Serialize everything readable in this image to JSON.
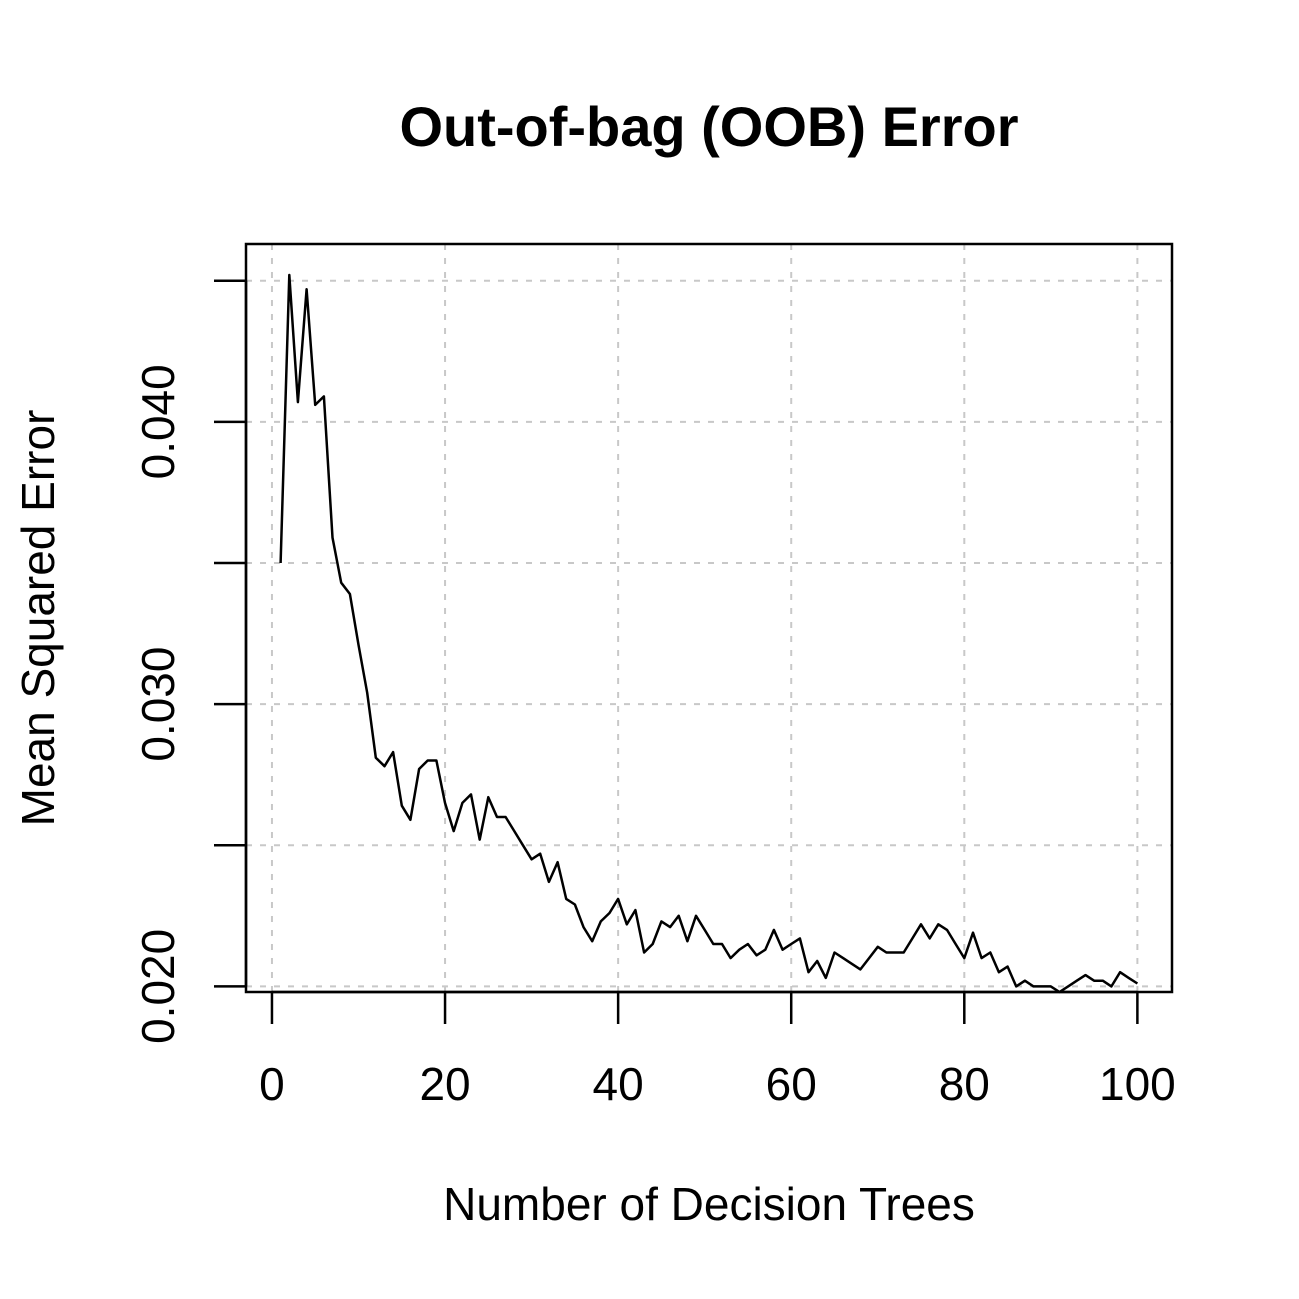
{
  "chart_data": {
    "type": "line",
    "title": "Out-of-bag (OOB) Error",
    "xlabel": "Number of Decision Trees",
    "ylabel": "Mean Squared Error",
    "xlim": [
      -3,
      104
    ],
    "ylim": [
      0.0198,
      0.0463
    ],
    "x_ticks": [
      0,
      20,
      40,
      60,
      80,
      100
    ],
    "x_tick_labels": [
      "0",
      "20",
      "40",
      "60",
      "80",
      "100"
    ],
    "y_ticks": [
      0.02,
      0.025,
      0.03,
      0.035,
      0.04,
      0.045
    ],
    "y_tick_labels": [
      "0.020",
      "",
      "0.030",
      "",
      "0.040",
      ""
    ],
    "grid": true,
    "series_color": "#000000",
    "grid_color": "#c8c8c8",
    "x": [
      1,
      2,
      3,
      4,
      5,
      6,
      7,
      8,
      9,
      10,
      11,
      12,
      13,
      14,
      15,
      16,
      17,
      18,
      19,
      20,
      21,
      22,
      23,
      24,
      25,
      26,
      27,
      28,
      29,
      30,
      31,
      32,
      33,
      34,
      35,
      36,
      37,
      38,
      39,
      40,
      41,
      42,
      43,
      44,
      45,
      46,
      47,
      48,
      49,
      50,
      51,
      52,
      53,
      54,
      55,
      56,
      57,
      58,
      59,
      60,
      61,
      62,
      63,
      64,
      65,
      66,
      67,
      68,
      69,
      70,
      71,
      72,
      73,
      74,
      75,
      76,
      77,
      78,
      79,
      80,
      81,
      82,
      83,
      84,
      85,
      86,
      87,
      88,
      89,
      90,
      91,
      92,
      93,
      94,
      95,
      96,
      97,
      98,
      99,
      100
    ],
    "y": [
      0.035,
      0.0452,
      0.0407,
      0.0447,
      0.0406,
      0.0409,
      0.0359,
      0.0343,
      0.0339,
      0.0321,
      0.0304,
      0.0281,
      0.0278,
      0.0283,
      0.0264,
      0.0259,
      0.0277,
      0.028,
      0.028,
      0.0265,
      0.0255,
      0.0265,
      0.0268,
      0.0252,
      0.0267,
      0.026,
      0.026,
      0.0255,
      0.025,
      0.0245,
      0.0247,
      0.0237,
      0.0244,
      0.0231,
      0.0229,
      0.0221,
      0.0216,
      0.0223,
      0.0226,
      0.0231,
      0.0222,
      0.0227,
      0.0212,
      0.0215,
      0.0223,
      0.0221,
      0.0225,
      0.0216,
      0.0225,
      0.022,
      0.0215,
      0.0215,
      0.021,
      0.0213,
      0.0215,
      0.0211,
      0.0213,
      0.022,
      0.0213,
      0.0215,
      0.0217,
      0.0205,
      0.0209,
      0.0203,
      0.0212,
      0.021,
      0.0208,
      0.0206,
      0.021,
      0.0214,
      0.0212,
      0.0212,
      0.0212,
      0.0217,
      0.0222,
      0.0217,
      0.0222,
      0.022,
      0.0215,
      0.021,
      0.0219,
      0.021,
      0.0212,
      0.0205,
      0.0207,
      0.02,
      0.0202,
      0.02,
      0.02,
      0.02,
      0.0198,
      0.02,
      0.0202,
      0.0204,
      0.0202,
      0.0202,
      0.02,
      0.0205,
      0.0203,
      0.0201
    ]
  }
}
